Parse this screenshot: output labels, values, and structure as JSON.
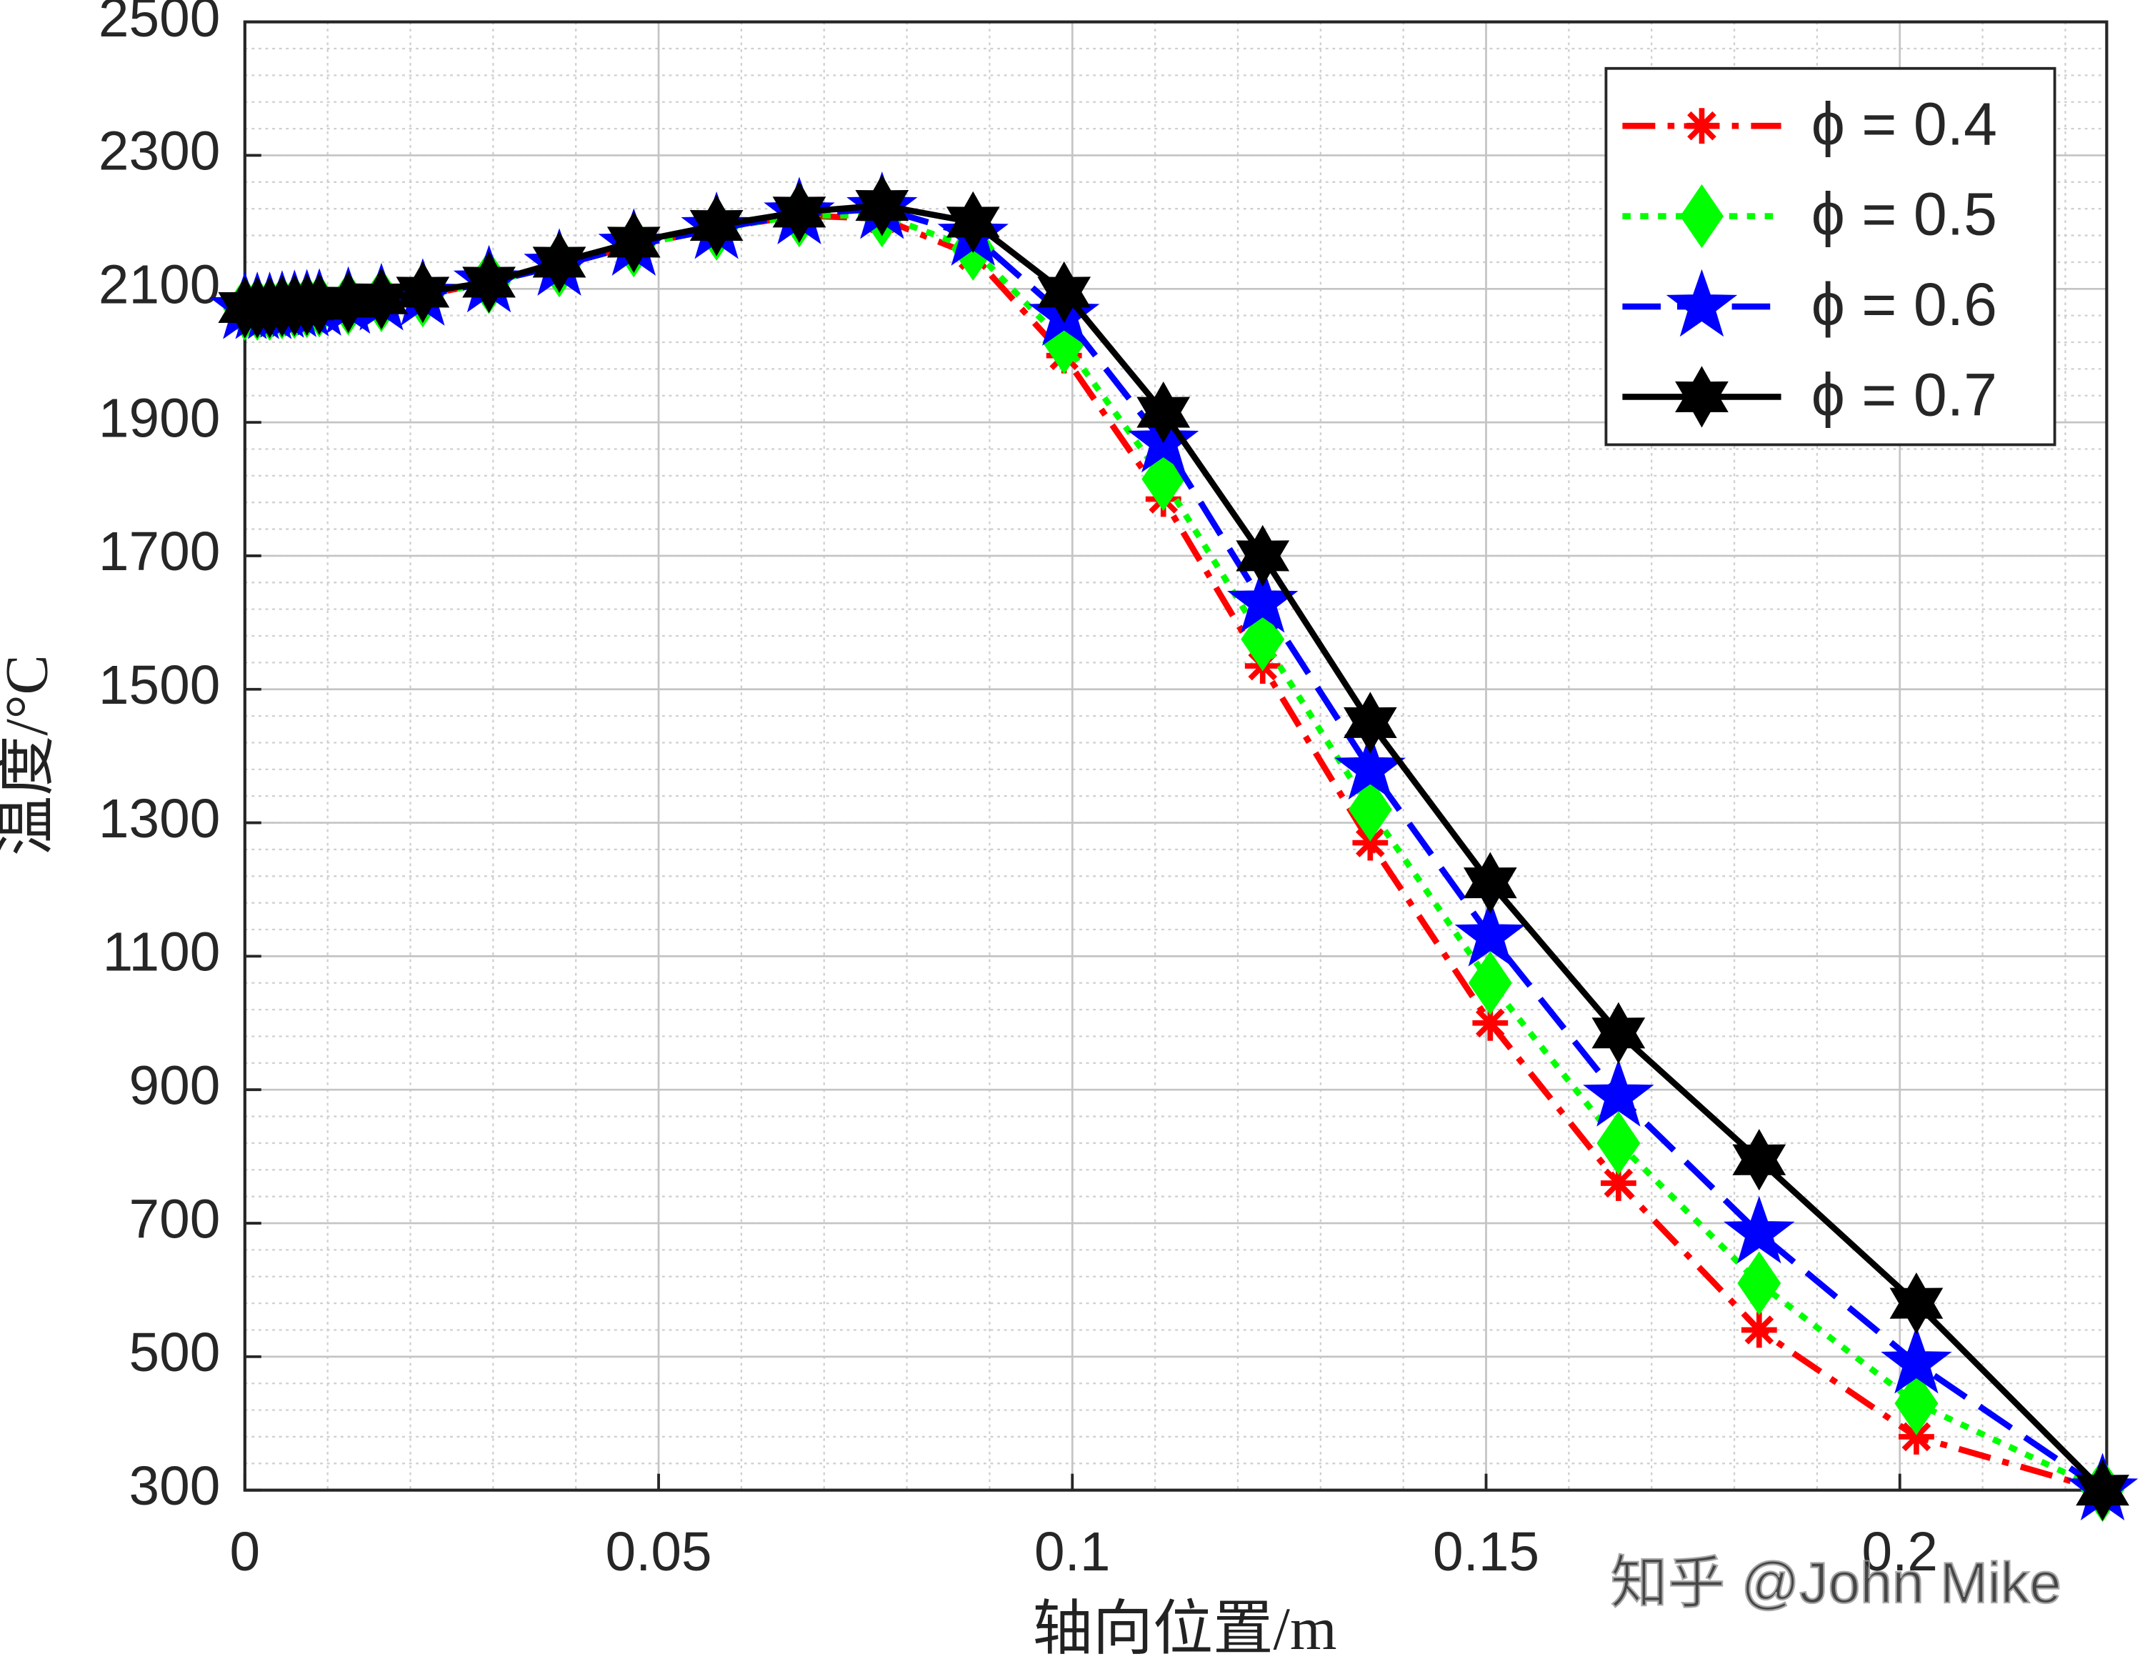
{
  "chart_data": {
    "type": "line",
    "x_label": "轴向位置/m",
    "y_label": "温度/°C",
    "x": [
      0,
      0.0015,
      0.003,
      0.0045,
      0.006,
      0.0075,
      0.009,
      0.0125,
      0.0165,
      0.0215,
      0.0295,
      0.038,
      0.047,
      0.057,
      0.067,
      0.077,
      0.088,
      0.099,
      0.111,
      0.123,
      0.136,
      0.1505,
      0.166,
      0.183,
      0.202,
      0.2245
    ],
    "series": [
      {
        "name": "ϕ = 0.4",
        "color": "#ff0000",
        "dash": "dashdot",
        "marker": "asterisk",
        "values": [
          2070,
          2070,
          2070,
          2072,
          2073,
          2074,
          2075,
          2078,
          2083,
          2090,
          2110,
          2135,
          2165,
          2190,
          2210,
          2205,
          2150,
          2000,
          1785,
          1535,
          1270,
          1000,
          760,
          540,
          380,
          300
        ]
      },
      {
        "name": "ϕ = 0.5",
        "color": "#00ff00",
        "dash": "dotted",
        "marker": "diamond",
        "values": [
          2070,
          2070,
          2070,
          2072,
          2073,
          2074,
          2075,
          2078,
          2083,
          2090,
          2110,
          2135,
          2165,
          2190,
          2210,
          2210,
          2160,
          2020,
          1815,
          1575,
          1320,
          1060,
          820,
          610,
          430,
          300
        ]
      },
      {
        "name": "ϕ = 0.6",
        "color": "#0000ff",
        "dash": "dashed",
        "marker": "pentagram",
        "values": [
          2070,
          2070,
          2070,
          2072,
          2073,
          2074,
          2075,
          2078,
          2083,
          2090,
          2110,
          2135,
          2165,
          2190,
          2212,
          2220,
          2180,
          2060,
          1870,
          1630,
          1380,
          1130,
          890,
          685,
          490,
          300
        ]
      },
      {
        "name": "ϕ = 0.7",
        "color": "#000000",
        "dash": "solid",
        "marker": "hexagram",
        "values": [
          2072,
          2072,
          2072,
          2074,
          2075,
          2076,
          2077,
          2080,
          2085,
          2095,
          2110,
          2140,
          2170,
          2195,
          2215,
          2225,
          2200,
          2095,
          1915,
          1700,
          1450,
          1210,
          985,
          795,
          580,
          300
        ]
      }
    ],
    "xlim": [
      0,
      0.225
    ],
    "ylim": [
      300,
      2500
    ],
    "xticks": [
      0,
      0.05,
      0.1,
      0.15,
      0.2
    ],
    "yticks": [
      300,
      500,
      700,
      900,
      1100,
      1300,
      1500,
      1700,
      1900,
      2100,
      2300,
      2500
    ],
    "grid": true,
    "minor_grid": true,
    "legend": "upper right",
    "watermark": "知乎 @John Mike"
  }
}
